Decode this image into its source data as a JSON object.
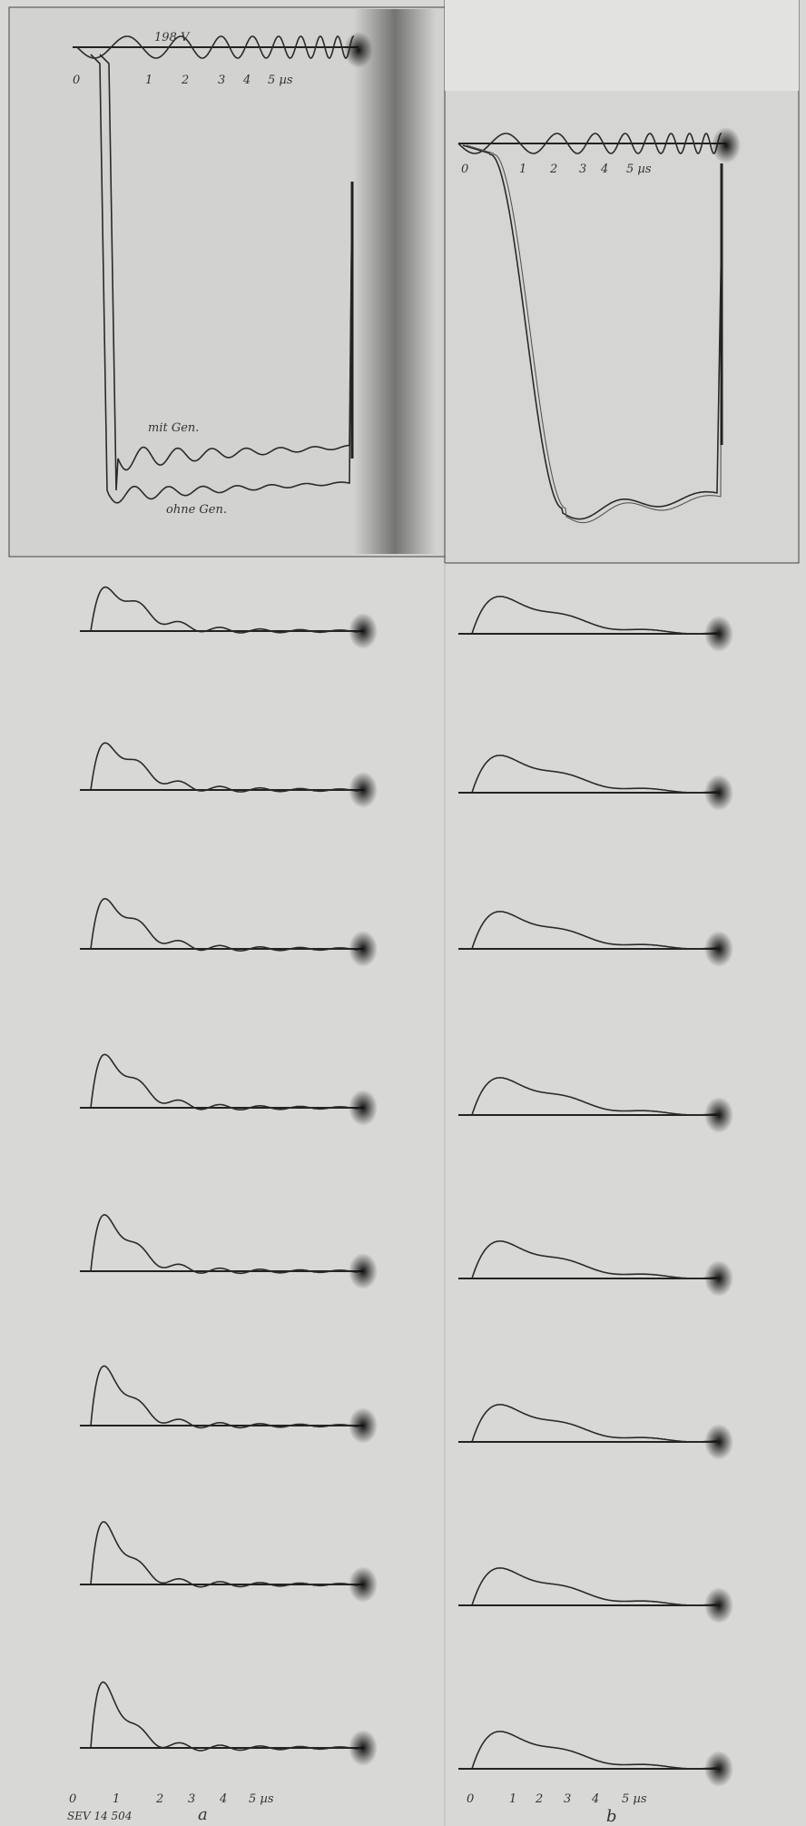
{
  "top_a": {
    "voltage_label": "198 V",
    "time_labels": [
      "0",
      "1",
      "2",
      "3",
      "4",
      "5 µs"
    ],
    "trace_labels": [
      "mit Gen.",
      "ohne Gen."
    ]
  },
  "top_b": {
    "time_labels": [
      "0",
      "1",
      "2",
      "3",
      "4",
      "5 µs"
    ]
  },
  "bottom_a": {
    "time_labels": [
      "0",
      "1",
      "2",
      "3",
      "4",
      "5 µs"
    ]
  },
  "bottom_b": {
    "time_labels": [
      "0",
      "1",
      "2",
      "3",
      "4",
      "5 µs"
    ]
  },
  "figure_number": "SEV 14 504",
  "column_labels": [
    "a",
    "b"
  ]
}
